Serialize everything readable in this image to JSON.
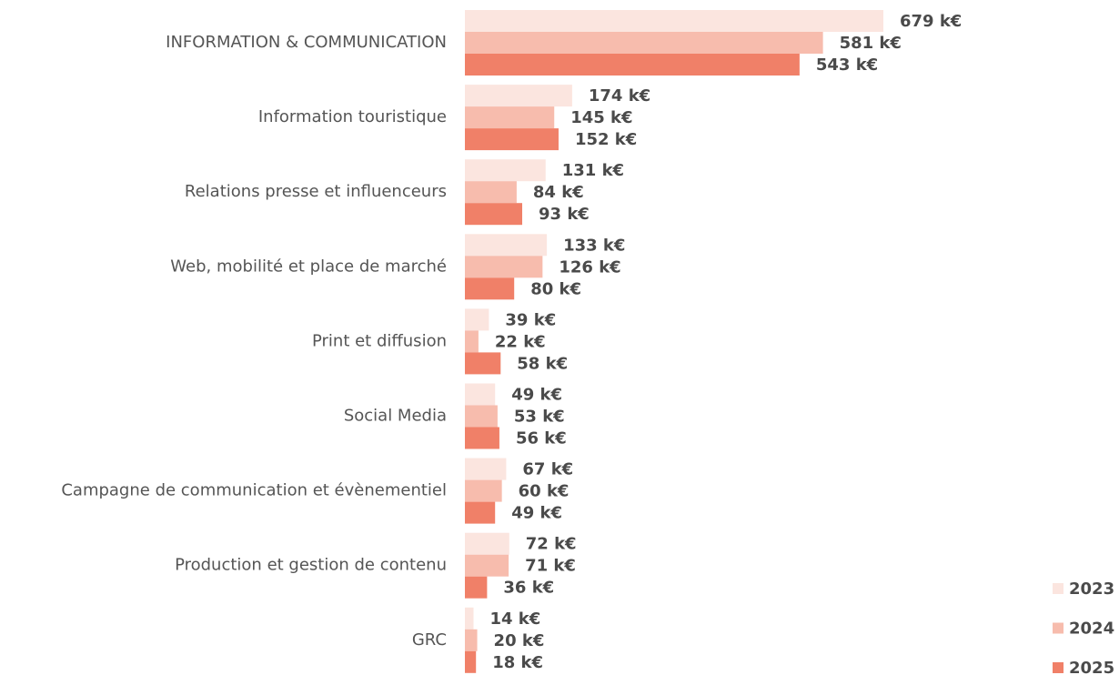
{
  "chart_data": {
    "type": "bar",
    "orientation": "horizontal",
    "categories": [
      "INFORMATION & COMMUNICATION",
      "Information touristique",
      "Relations presse et influenceurs",
      "Web, mobilité et place de marché",
      "Print et diffusion",
      "Social Media",
      "Campagne de communication et évènementiel",
      "Production et gestion de contenu",
      "GRC"
    ],
    "series": [
      {
        "name": "2023",
        "color": "#fbe5df",
        "values": [
          679,
          174,
          131,
          133,
          39,
          49,
          67,
          72,
          14
        ],
        "value_labels": [
          "679 k€",
          "174 k€",
          "131 k€",
          "133 k€",
          "39 k€",
          "49 k€",
          "67 k€",
          "72 k€",
          "14 k€"
        ]
      },
      {
        "name": "2024",
        "color": "#f7bcad",
        "values": [
          581,
          145,
          84,
          126,
          22,
          53,
          60,
          71,
          20
        ],
        "value_labels": [
          "581 k€",
          "145 k€",
          "84 k€",
          "126 k€",
          "22 k€",
          "53 k€",
          "60 k€",
          "71 k€",
          "20 k€"
        ]
      },
      {
        "name": "2025",
        "color": "#f08068",
        "values": [
          543,
          152,
          93,
          80,
          58,
          56,
          49,
          36,
          18
        ],
        "value_labels": [
          "543 k€",
          "152 k€",
          "93 k€",
          "80 k€",
          "58 k€",
          "56 k€",
          "49 k€",
          "36 k€",
          "18 k€"
        ]
      }
    ],
    "legend": "bottom-right"
  }
}
